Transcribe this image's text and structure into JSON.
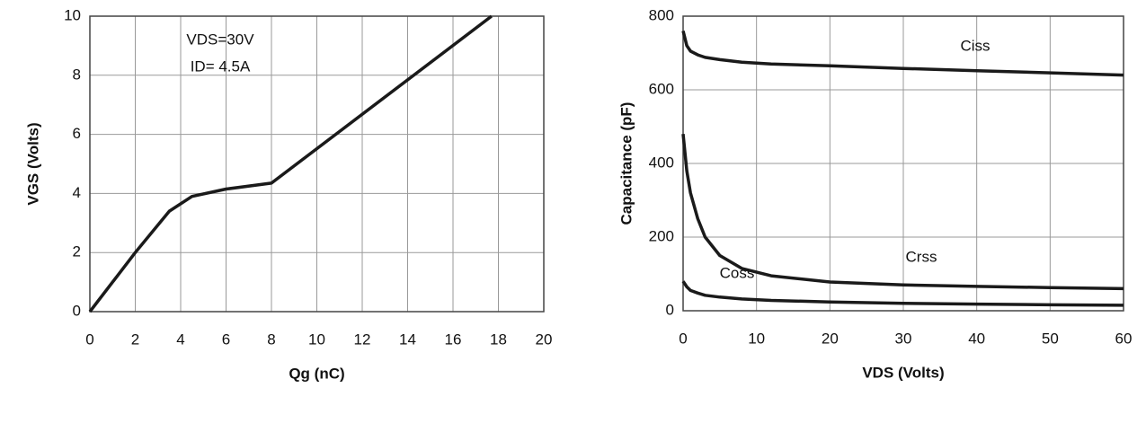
{
  "chart_data": [
    {
      "type": "line",
      "ylabel": "VGS (Volts)",
      "xlabel": "Qg (nC)",
      "annotations": [
        "VDS=30V",
        "ID= 4.5A"
      ],
      "xlim": [
        0,
        20
      ],
      "xticks": [
        0,
        2,
        4,
        6,
        8,
        10,
        12,
        14,
        16,
        18,
        20
      ],
      "ylim": [
        0,
        10
      ],
      "yticks": [
        0,
        2,
        4,
        6,
        8,
        10
      ],
      "grid": true,
      "series": [
        {
          "color": "#1a1a1a",
          "x": [
            0,
            2,
            3.5,
            4.5,
            6,
            8,
            17.7
          ],
          "values": [
            0,
            2,
            3.4,
            3.9,
            4.15,
            4.35,
            10
          ]
        }
      ]
    },
    {
      "type": "line",
      "ylabel": "Capacitance (pF)",
      "xlabel": "VDS (Volts)",
      "annotations": [
        "Ciss",
        "Coss",
        "Crss"
      ],
      "xlim": [
        0,
        60
      ],
      "xticks": [
        0,
        10,
        20,
        30,
        40,
        50,
        60
      ],
      "ylim": [
        0,
        800
      ],
      "yticks": [
        0,
        200,
        400,
        600,
        800
      ],
      "grid": true,
      "series": [
        {
          "color": "#1a1a1a",
          "x": [
            0,
            0.5,
            1,
            2,
            3,
            5,
            8,
            12,
            20,
            30,
            40,
            50,
            60
          ],
          "values": [
            760,
            720,
            705,
            695,
            688,
            682,
            675,
            670,
            665,
            658,
            652,
            646,
            640
          ]
        },
        {
          "color": "#1a1a1a",
          "x": [
            0,
            0.5,
            1,
            2,
            3,
            5,
            8,
            12,
            20,
            30,
            40,
            50,
            60
          ],
          "values": [
            480,
            380,
            320,
            250,
            200,
            150,
            115,
            95,
            78,
            70,
            66,
            63,
            60
          ]
        },
        {
          "color": "#1a1a1a",
          "x": [
            0,
            0.5,
            1,
            2,
            3,
            5,
            8,
            12,
            20,
            30,
            40,
            50,
            60
          ],
          "values": [
            80,
            65,
            55,
            48,
            42,
            37,
            32,
            28,
            24,
            20,
            18,
            16,
            15
          ]
        }
      ]
    }
  ]
}
